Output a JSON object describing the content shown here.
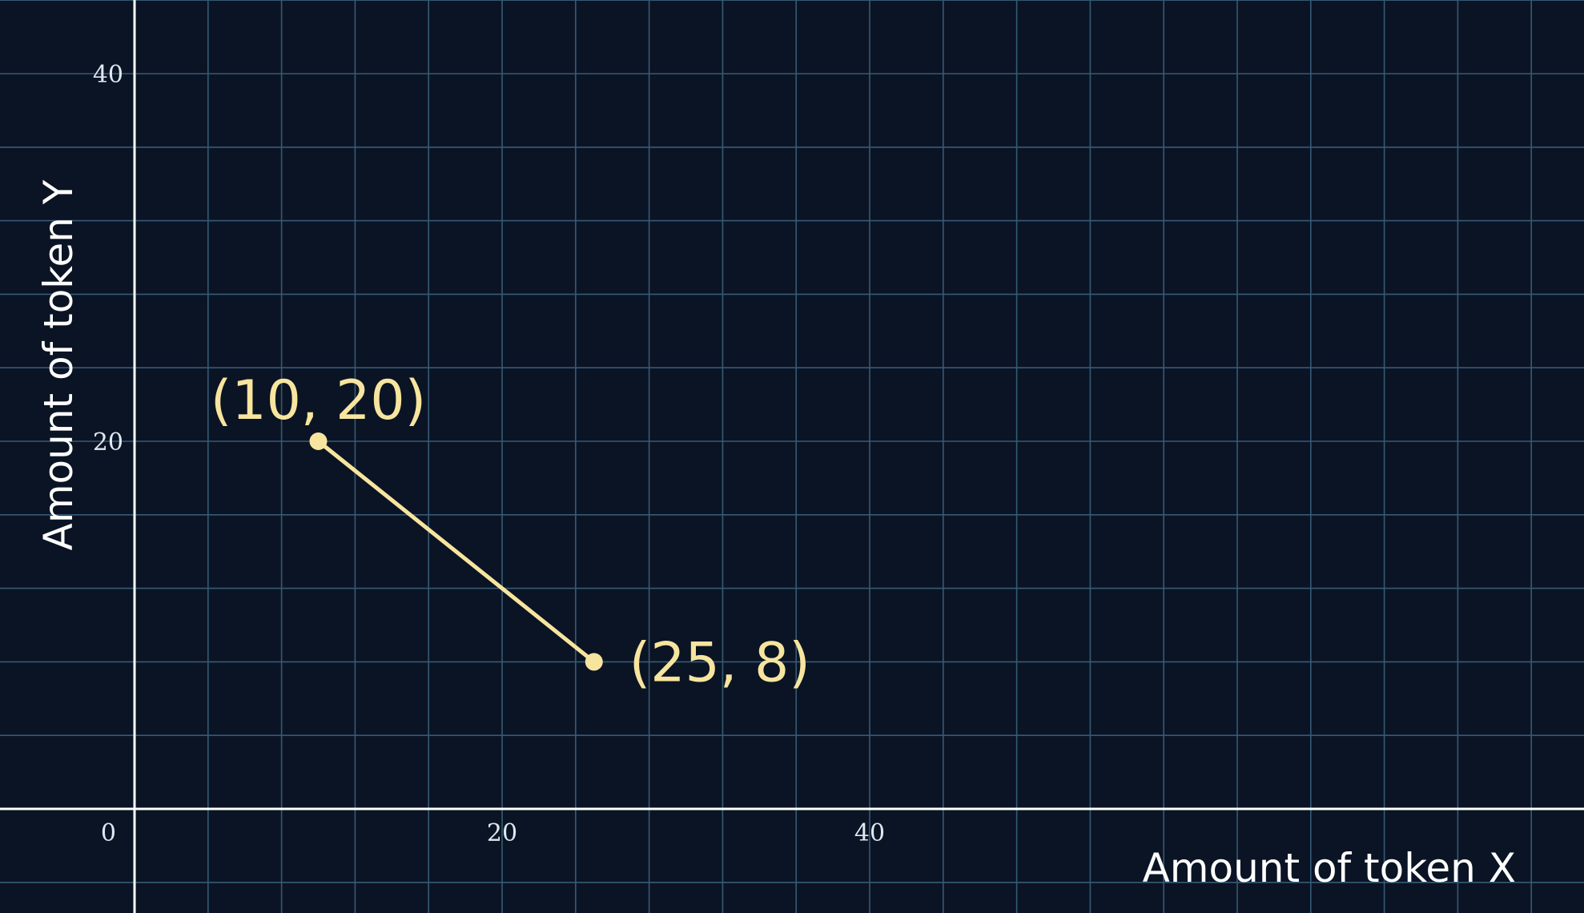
{
  "chart_data": {
    "type": "line",
    "title": "",
    "xlabel": "Amount of token X",
    "ylabel": "Amount of token Y",
    "xlim": [
      -2,
      79
    ],
    "ylim": [
      -4,
      45
    ],
    "x_ticks": [
      0,
      20,
      40
    ],
    "x_tick_labels": [
      "0",
      "20",
      "40"
    ],
    "y_ticks": [
      20,
      40
    ],
    "y_tick_labels": [
      "20",
      "40"
    ],
    "grid": true,
    "grid_step": 4,
    "series": [
      {
        "points": [
          {
            "x": 10,
            "y": 20,
            "label": "(10, 20)"
          },
          {
            "x": 25,
            "y": 8,
            "label": "(25, 8)"
          }
        ]
      }
    ],
    "colors": {
      "background": "#0b1424",
      "grid": "#355a77",
      "axis": "#ffffff",
      "series": "#f7e59f",
      "tick_text": "#dfe7ef",
      "axis_title": "#ffffff"
    }
  }
}
